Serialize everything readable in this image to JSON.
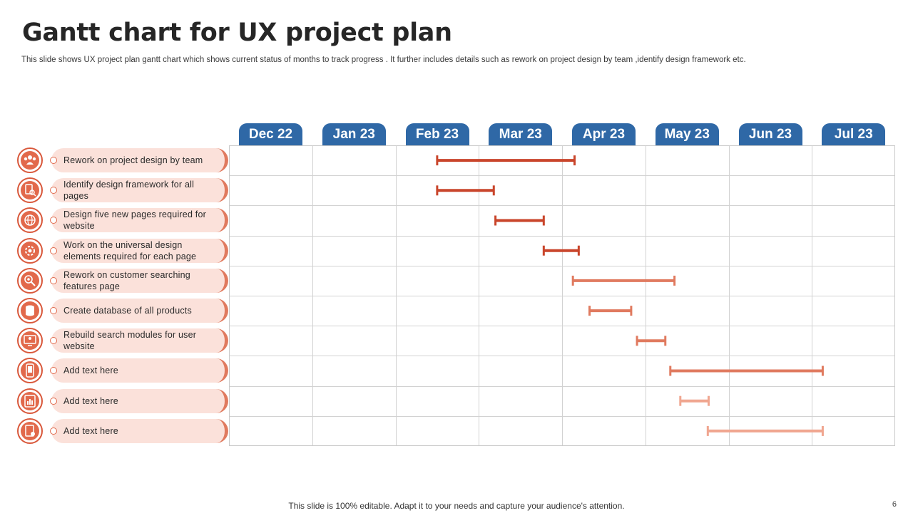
{
  "slide": {
    "title": "Gantt chart for UX project plan",
    "subtitle": "This slide shows UX project plan gantt chart which shows current status of months to track progress . It further includes details such as rework on project design by team ,identify design framework etc.",
    "footer": "This slide is 100% editable. Adapt it to your needs and capture your audience's attention.",
    "page_number": "6"
  },
  "colors": {
    "month_header": "#2f68a6",
    "accent": "#e07a5f"
  },
  "chart_data": {
    "type": "gantt",
    "months": [
      "Dec 22",
      "Jan 23",
      "Feb 23",
      "Mar 23",
      "Apr 23",
      "May 23",
      "Jun 23",
      "Jul 23"
    ],
    "tasks": [
      {
        "label": "Rework on project design by team",
        "icon": "team-icon",
        "start": 2.5,
        "end": 4.15,
        "color": "#c9452b"
      },
      {
        "label": "Identify design framework for all pages",
        "icon": "document-search-icon",
        "start": 2.5,
        "end": 3.18,
        "color": "#c9452b"
      },
      {
        "label": "Design five new pages required for website",
        "icon": "web-globe-icon",
        "start": 3.2,
        "end": 3.78,
        "color": "#c9452b"
      },
      {
        "label": "Work on the universal design elements required for each page",
        "icon": "gear-globe-icon",
        "start": 3.78,
        "end": 4.2,
        "color": "#c9452b"
      },
      {
        "label": "Rework on customer searching features page",
        "icon": "search-gear-icon",
        "start": 4.13,
        "end": 5.35,
        "color": "#e07a5f"
      },
      {
        "label": "Create database of all products",
        "icon": "database-icon",
        "start": 4.33,
        "end": 4.83,
        "color": "#e07a5f"
      },
      {
        "label": "Rebuild search modules for user website",
        "icon": "monitor-user-icon",
        "start": 4.9,
        "end": 5.24,
        "color": "#e07a5f"
      },
      {
        "label": "Add text here",
        "icon": "mobile-app-icon",
        "start": 5.3,
        "end": 7.13,
        "color": "#e07a5f"
      },
      {
        "label": "Add text here",
        "icon": "tablet-chart-icon",
        "start": 5.42,
        "end": 5.76,
        "color": "#f0a690"
      },
      {
        "label": "Add text here",
        "icon": "document-gear-icon",
        "start": 5.75,
        "end": 7.13,
        "color": "#f0a690"
      }
    ]
  }
}
